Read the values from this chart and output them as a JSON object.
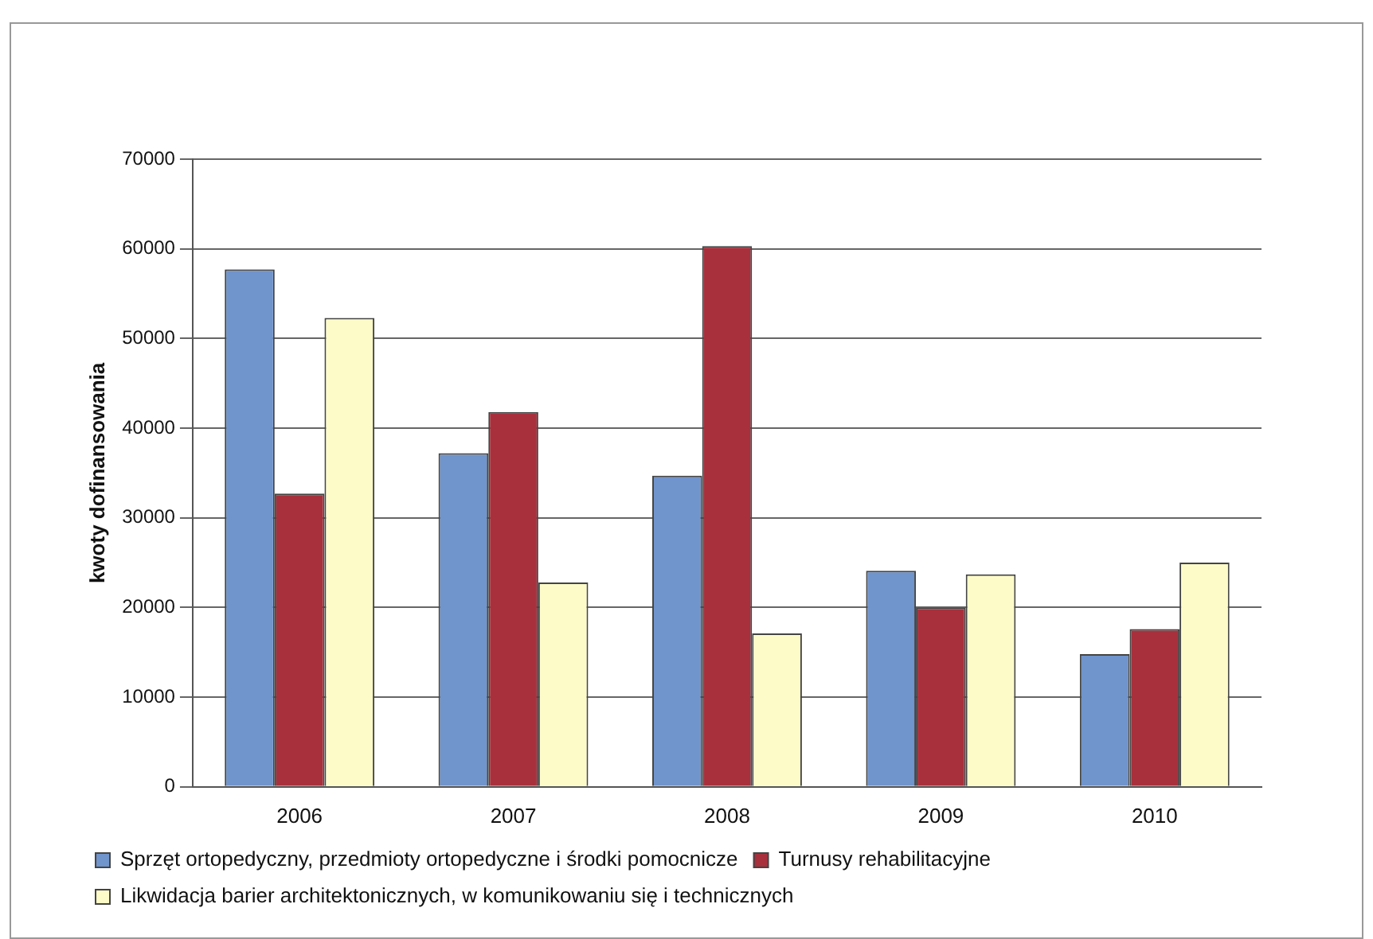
{
  "chart_data": {
    "type": "bar",
    "ylabel": "kwoty dofinansowania",
    "categories": [
      "2006",
      "2007",
      "2008",
      "2009",
      "2010"
    ],
    "series": [
      {
        "name": "Sprzęt ortopedyczny, przedmioty ortopedyczne i środki pomocnicze",
        "color": "#7094cc",
        "values": [
          57700,
          37200,
          34700,
          24100,
          14800
        ]
      },
      {
        "name": "Turnusy rehabilitacyjne",
        "color": "#a8303c",
        "values": [
          32700,
          41800,
          60300,
          20000,
          17600
        ]
      },
      {
        "name": "Likwidacja barier architektonicznych, w komunikowaniu się i technicznych",
        "color": "#fdfbc8",
        "values": [
          52300,
          22800,
          17100,
          23700,
          25000
        ]
      }
    ],
    "ylim": [
      0,
      70000
    ],
    "yticks": [
      0,
      10000,
      20000,
      30000,
      40000,
      50000,
      60000,
      70000
    ],
    "grid": "y",
    "legend": "bottom"
  }
}
